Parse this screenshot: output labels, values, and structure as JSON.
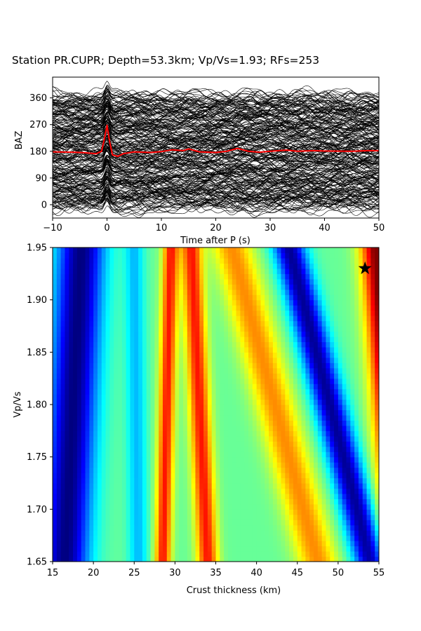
{
  "title": "Station PR.CUPR; Depth=53.3km; Vp/Vs=1.93; RFs=253",
  "chart_data": [
    {
      "type": "line",
      "panel": "receiver-functions",
      "xlabel": "Time after P (s)",
      "ylabel": "BAZ",
      "xlim": [
        -10,
        50
      ],
      "ylim": [
        -45,
        430
      ],
      "x_ticks": [
        -10,
        0,
        10,
        20,
        30,
        40,
        50
      ],
      "y_ticks": [
        0,
        90,
        180,
        270,
        360
      ],
      "grid": false,
      "trace_count": 253,
      "trace_color": "#000000",
      "stack_color": "#ff0000",
      "stack_trace": {
        "x": [
          -10,
          -6,
          -4,
          -2,
          -1,
          -0.5,
          0,
          0.5,
          1,
          2,
          3,
          5,
          8,
          10,
          12,
          14,
          15,
          17,
          20,
          22,
          24,
          26,
          28,
          30,
          33,
          35,
          38,
          40,
          45,
          48,
          50
        ],
        "y": [
          178,
          177,
          175,
          172,
          180,
          220,
          268,
          210,
          168,
          163,
          172,
          178,
          176,
          179,
          185,
          182,
          188,
          178,
          176,
          180,
          190,
          180,
          177,
          180,
          184,
          180,
          182,
          181,
          180,
          182,
          182
        ]
      }
    },
    {
      "type": "heatmap",
      "panel": "h-kappa-stack",
      "xlabel": "Crust thickness (km)",
      "ylabel": "Vp/Vs",
      "xlim": [
        15,
        55
      ],
      "ylim": [
        1.65,
        1.95
      ],
      "x_ticks": [
        15,
        20,
        25,
        30,
        35,
        40,
        45,
        50,
        55
      ],
      "y_ticks": [
        "1.65",
        "1.70",
        "1.75",
        "1.80",
        "1.85",
        "1.90",
        "1.95"
      ],
      "colormap": "jet",
      "maximum_marker": {
        "x": 53.3,
        "y": 1.93,
        "symbol": "star",
        "color": "#000000"
      },
      "features": [
        {
          "label": "low",
          "x_at_1.65": 16.5,
          "x_at_1.95": 18.5,
          "sign": -1.0,
          "width": 3.0
        },
        {
          "label": "high",
          "x_at_1.65": 28.5,
          "x_at_1.95": 29.5,
          "sign": 0.8,
          "width": 1.0
        },
        {
          "label": "high",
          "x_at_1.65": 34.0,
          "x_at_1.95": 32.0,
          "sign": 0.8,
          "width": 1.3
        },
        {
          "label": "low",
          "x_at_1.65": 25.5,
          "x_at_1.95": 25.0,
          "sign": -0.35,
          "width": 1.2
        },
        {
          "label": "high",
          "x_at_1.65": 47.5,
          "x_at_1.95": 37.0,
          "sign": 0.55,
          "width": 2.5
        },
        {
          "label": "low",
          "x_at_1.65": 54.0,
          "x_at_1.95": 44.0,
          "sign": -0.95,
          "width": 2.0
        },
        {
          "label": "high",
          "x_at_1.65": 58.0,
          "x_at_1.95": 55.0,
          "sign": 1.2,
          "width": 2.2
        }
      ]
    }
  ]
}
